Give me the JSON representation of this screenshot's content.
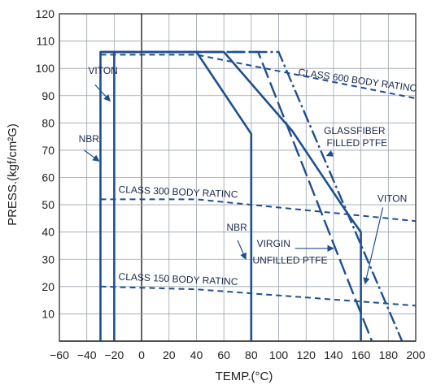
{
  "chart_data": {
    "type": "line",
    "xlabel": "TEMP.(°C)",
    "ylabel": "PRESS.(kgf/cm²G)",
    "xlim": [
      -60,
      200
    ],
    "ylim": [
      0,
      120
    ],
    "x_ticks": [
      "−60",
      "−40",
      "−20",
      "0",
      "20",
      "40",
      "60",
      "80",
      "100",
      "120",
      "140",
      "160",
      "180",
      "200"
    ],
    "y_ticks": [
      "10",
      "20",
      "30",
      "40",
      "50",
      "60",
      "70",
      "80",
      "90",
      "100",
      "110",
      "120"
    ],
    "grid": true,
    "series": [
      {
        "name": "VITON",
        "style": "solid",
        "points": [
          [
            -20,
            0
          ],
          [
            -20,
            106
          ],
          [
            60,
            106
          ],
          [
            110,
            77
          ],
          [
            150,
            47
          ],
          [
            160,
            40
          ],
          [
            160,
            0
          ]
        ]
      },
      {
        "name": "NBR",
        "style": "solid",
        "points": [
          [
            -30,
            0
          ],
          [
            -30,
            106
          ],
          [
            40,
            106
          ],
          [
            80,
            76
          ],
          [
            80,
            0
          ]
        ]
      },
      {
        "name": "GLASSFIBER FILLED PTFE",
        "style": "dashdot",
        "points": [
          [
            -30,
            106
          ],
          [
            100,
            106
          ],
          [
            190,
            0
          ]
        ]
      },
      {
        "name": "VIRGIN UNFILLED PTFE",
        "style": "longdash",
        "points": [
          [
            -30,
            106
          ],
          [
            85,
            106
          ],
          [
            168,
            0
          ]
        ]
      },
      {
        "name": "CLASS 600 BODY RATING",
        "style": "dashed",
        "points": [
          [
            -30,
            105
          ],
          [
            40,
            105
          ],
          [
            200,
            89
          ]
        ]
      },
      {
        "name": "CLASS 300 BODY RATING",
        "style": "dashed",
        "points": [
          [
            -30,
            52
          ],
          [
            40,
            52
          ],
          [
            200,
            44
          ]
        ]
      },
      {
        "name": "CLASS 150 BODY RATING",
        "style": "dashed",
        "points": [
          [
            -30,
            20
          ],
          [
            40,
            19
          ],
          [
            200,
            13
          ]
        ]
      }
    ],
    "annotations": [
      {
        "key": "viton_left",
        "text": "VITON"
      },
      {
        "key": "nbr_left",
        "text": "NBR"
      },
      {
        "key": "class600",
        "text": "CLASS 600 BODY RATINC"
      },
      {
        "key": "glassfiber_1",
        "text": "GLASSFIBER"
      },
      {
        "key": "glassfiber_2",
        "text": "FILLED PTFE"
      },
      {
        "key": "class300",
        "text": "CLASS 300 BODY RATINC"
      },
      {
        "key": "viton_right",
        "text": "VITON"
      },
      {
        "key": "nbr_mid",
        "text": "NBR"
      },
      {
        "key": "virgin_1",
        "text": "VIRGIN"
      },
      {
        "key": "virgin_2",
        "text": "UNFILLED PTFE"
      },
      {
        "key": "class150",
        "text": "CLASS 150 BODY RATINC"
      }
    ],
    "colors": {
      "line": "#1f4f8f",
      "grid": "#9aa3ad",
      "axis": "#222222"
    }
  }
}
